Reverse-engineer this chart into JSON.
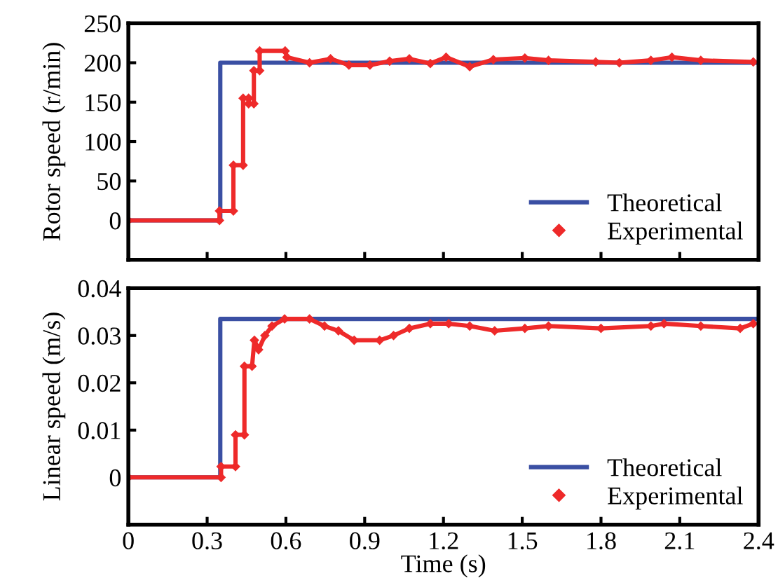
{
  "chart_data": [
    {
      "type": "line",
      "ylabel": "Rotor speed (r/min)",
      "xlim": [
        0,
        2.4
      ],
      "xticks": [
        0,
        0.3,
        0.6,
        0.9,
        1.2,
        1.5,
        1.8,
        2.1,
        2.4
      ],
      "ylim": [
        -50,
        250
      ],
      "yticks": [
        0,
        50,
        100,
        150,
        200,
        250
      ],
      "tick_labels": "y",
      "legend": "bottom right",
      "grid": false,
      "series": [
        {
          "name": "Theoretical",
          "color": "#3a4fa3",
          "marker": "none",
          "x": [
            0,
            0.35,
            0.35,
            2.4
          ],
          "values": [
            0,
            0,
            200,
            200
          ]
        },
        {
          "name": "Experimental",
          "color": "#ee2a2a",
          "marker": "diamond",
          "x": [
            0,
            0.347,
            0.347,
            0.4,
            0.4,
            0.437,
            0.437,
            0.458,
            0.458,
            0.478,
            0.478,
            0.5,
            0.5,
            0.597,
            0.604,
            0.69,
            0.77,
            0.84,
            0.92,
            0.995,
            1.07,
            1.15,
            1.21,
            1.3,
            1.39,
            1.51,
            1.6,
            1.78,
            1.87,
            1.99,
            2.07,
            2.18,
            2.38
          ],
          "values": [
            0,
            0,
            12,
            12,
            70,
            70,
            155,
            155,
            148,
            148,
            190,
            190,
            215,
            215,
            207,
            200,
            205,
            197,
            197,
            202,
            205,
            199,
            207,
            195,
            204,
            206,
            203,
            201,
            200,
            203,
            207,
            203,
            201
          ]
        }
      ]
    },
    {
      "type": "line",
      "xlabel": "Time (s)",
      "ylabel": "Linear speed (m/s)",
      "xlim": [
        0,
        2.4
      ],
      "xticks": [
        0,
        0.3,
        0.6,
        0.9,
        1.2,
        1.5,
        1.8,
        2.1,
        2.4
      ],
      "ylim": [
        -0.01,
        0.04
      ],
      "yticks": [
        0,
        0.01,
        0.02,
        0.03,
        0.04
      ],
      "legend": "bottom right",
      "grid": false,
      "series": [
        {
          "name": "Theoretical",
          "color": "#3a4fa3",
          "marker": "none",
          "x": [
            0,
            0.35,
            0.35,
            2.4
          ],
          "values": [
            0,
            0,
            0.0335,
            0.0335
          ]
        },
        {
          "name": "Experimental",
          "color": "#ee2a2a",
          "marker": "diamond",
          "x": [
            0,
            0.353,
            0.353,
            0.408,
            0.408,
            0.442,
            0.442,
            0.471,
            0.48,
            0.496,
            0.52,
            0.547,
            0.595,
            0.69,
            0.747,
            0.8,
            0.86,
            0.957,
            1.01,
            1.07,
            1.15,
            1.22,
            1.3,
            1.395,
            1.51,
            1.6,
            1.8,
            1.99,
            2.04,
            2.18,
            2.33,
            2.38
          ],
          "values": [
            0,
            0,
            0.0023,
            0.0023,
            0.009,
            0.009,
            0.0235,
            0.0235,
            0.029,
            0.027,
            0.03,
            0.032,
            0.0335,
            0.0335,
            0.032,
            0.031,
            0.029,
            0.029,
            0.03,
            0.0315,
            0.0325,
            0.0325,
            0.032,
            0.031,
            0.0315,
            0.032,
            0.0315,
            0.032,
            0.0325,
            0.032,
            0.0315,
            0.0325
          ]
        }
      ]
    }
  ]
}
